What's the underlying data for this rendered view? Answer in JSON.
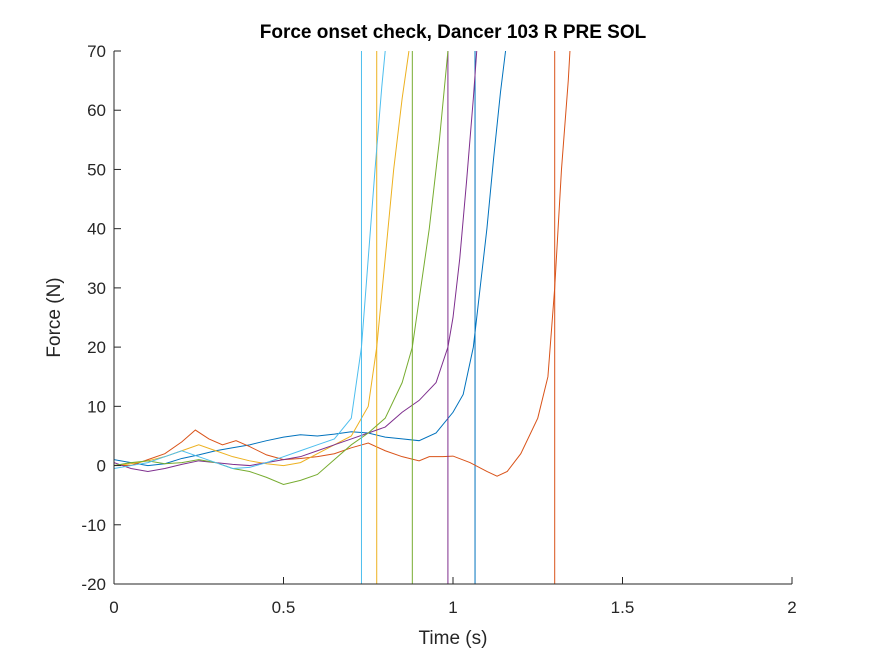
{
  "chart_data": {
    "type": "line",
    "title": "Force onset check, Dancer 103 R PRE SOL",
    "xlabel": "Time (s)",
    "ylabel": "Force (N)",
    "xlim": [
      0,
      2
    ],
    "ylim": [
      -20,
      70
    ],
    "xticks": [
      0,
      0.5,
      1,
      1.5,
      2
    ],
    "xtick_labels": [
      "0",
      "0.5",
      "1",
      "1.5",
      "2"
    ],
    "yticks": [
      -20,
      -10,
      0,
      10,
      20,
      30,
      40,
      50,
      60,
      70
    ],
    "ytick_labels": [
      "-20",
      "-10",
      "0",
      "10",
      "20",
      "30",
      "40",
      "50",
      "60",
      "70"
    ],
    "grid": false,
    "legend": "none",
    "series": [
      {
        "color": "#0072BD",
        "onset": 1.065,
        "points": [
          [
            0,
            1
          ],
          [
            0.05,
            0.5
          ],
          [
            0.1,
            0
          ],
          [
            0.15,
            0.3
          ],
          [
            0.2,
            1.2
          ],
          [
            0.25,
            1.8
          ],
          [
            0.3,
            2.5
          ],
          [
            0.35,
            3.0
          ],
          [
            0.4,
            3.5
          ],
          [
            0.45,
            4.2
          ],
          [
            0.5,
            4.8
          ],
          [
            0.55,
            5.2
          ],
          [
            0.6,
            5.0
          ],
          [
            0.65,
            5.3
          ],
          [
            0.7,
            5.7
          ],
          [
            0.75,
            5.5
          ],
          [
            0.8,
            4.8
          ],
          [
            0.85,
            4.5
          ],
          [
            0.9,
            4.2
          ],
          [
            0.95,
            5.5
          ],
          [
            1.0,
            9.0
          ],
          [
            1.03,
            12.0
          ],
          [
            1.06,
            20.0
          ],
          [
            1.08,
            30.0
          ],
          [
            1.1,
            40.0
          ],
          [
            1.12,
            52.0
          ],
          [
            1.14,
            63.0
          ],
          [
            1.155,
            70.0
          ]
        ]
      },
      {
        "color": "#D95319",
        "onset": 1.3,
        "points": [
          [
            0,
            0
          ],
          [
            0.05,
            0
          ],
          [
            0.1,
            1.0
          ],
          [
            0.15,
            2.0
          ],
          [
            0.2,
            4.0
          ],
          [
            0.24,
            6.0
          ],
          [
            0.28,
            4.5
          ],
          [
            0.32,
            3.5
          ],
          [
            0.36,
            4.2
          ],
          [
            0.4,
            3.2
          ],
          [
            0.45,
            1.8
          ],
          [
            0.5,
            1.0
          ],
          [
            0.55,
            1.2
          ],
          [
            0.6,
            1.5
          ],
          [
            0.65,
            2.0
          ],
          [
            0.7,
            3.0
          ],
          [
            0.75,
            3.8
          ],
          [
            0.8,
            2.5
          ],
          [
            0.85,
            1.5
          ],
          [
            0.9,
            0.8
          ],
          [
            0.93,
            1.5
          ],
          [
            0.97,
            1.5
          ],
          [
            1.0,
            1.6
          ],
          [
            1.05,
            0.5
          ],
          [
            1.1,
            -1.0
          ],
          [
            1.13,
            -1.8
          ],
          [
            1.16,
            -1.0
          ],
          [
            1.2,
            2.0
          ],
          [
            1.25,
            8.0
          ],
          [
            1.28,
            15.0
          ],
          [
            1.3,
            30.0
          ],
          [
            1.32,
            50.0
          ],
          [
            1.34,
            65.0
          ],
          [
            1.345,
            70.0
          ]
        ]
      },
      {
        "color": "#EDB120",
        "onset": 0.775,
        "points": [
          [
            0,
            0
          ],
          [
            0.05,
            0.3
          ],
          [
            0.1,
            0.8
          ],
          [
            0.15,
            1.5
          ],
          [
            0.2,
            2.5
          ],
          [
            0.25,
            3.5
          ],
          [
            0.3,
            2.5
          ],
          [
            0.35,
            1.5
          ],
          [
            0.4,
            0.8
          ],
          [
            0.45,
            0.3
          ],
          [
            0.5,
            0.0
          ],
          [
            0.55,
            0.5
          ],
          [
            0.6,
            2.0
          ],
          [
            0.65,
            3.5
          ],
          [
            0.7,
            5.0
          ],
          [
            0.75,
            10.0
          ],
          [
            0.775,
            20.0
          ],
          [
            0.8,
            35.0
          ],
          [
            0.825,
            50.0
          ],
          [
            0.85,
            62.0
          ],
          [
            0.87,
            70.0
          ]
        ]
      },
      {
        "color": "#7E2F8E",
        "onset": 0.985,
        "points": [
          [
            0,
            0.5
          ],
          [
            0.05,
            -0.5
          ],
          [
            0.1,
            -1.0
          ],
          [
            0.15,
            -0.5
          ],
          [
            0.2,
            0.2
          ],
          [
            0.25,
            0.8
          ],
          [
            0.3,
            0.5
          ],
          [
            0.35,
            0.2
          ],
          [
            0.4,
            0.0
          ],
          [
            0.45,
            0.5
          ],
          [
            0.5,
            1.0
          ],
          [
            0.55,
            1.5
          ],
          [
            0.6,
            2.5
          ],
          [
            0.65,
            3.5
          ],
          [
            0.7,
            4.5
          ],
          [
            0.75,
            5.5
          ],
          [
            0.8,
            6.5
          ],
          [
            0.85,
            9.0
          ],
          [
            0.9,
            11.0
          ],
          [
            0.95,
            14.0
          ],
          [
            0.985,
            20.0
          ],
          [
            1.0,
            25.0
          ],
          [
            1.02,
            35.0
          ],
          [
            1.04,
            48.0
          ],
          [
            1.06,
            62.0
          ],
          [
            1.07,
            70.0
          ]
        ]
      },
      {
        "color": "#77AC30",
        "onset": 0.88,
        "points": [
          [
            0,
            0
          ],
          [
            0.05,
            0.5
          ],
          [
            0.1,
            0.8
          ],
          [
            0.15,
            0.3
          ],
          [
            0.2,
            0.5
          ],
          [
            0.25,
            1.0
          ],
          [
            0.3,
            0.5
          ],
          [
            0.35,
            -0.5
          ],
          [
            0.4,
            -1.0
          ],
          [
            0.45,
            -2.0
          ],
          [
            0.5,
            -3.2
          ],
          [
            0.55,
            -2.5
          ],
          [
            0.6,
            -1.5
          ],
          [
            0.65,
            1.0
          ],
          [
            0.7,
            3.5
          ],
          [
            0.75,
            5.5
          ],
          [
            0.8,
            8.0
          ],
          [
            0.85,
            14.0
          ],
          [
            0.88,
            20.0
          ],
          [
            0.9,
            28.0
          ],
          [
            0.93,
            40.0
          ],
          [
            0.96,
            55.0
          ],
          [
            0.985,
            70.0
          ]
        ]
      },
      {
        "color": "#4DBEEE",
        "onset": 0.73,
        "points": [
          [
            0,
            -0.5
          ],
          [
            0.05,
            0.0
          ],
          [
            0.1,
            0.5
          ],
          [
            0.15,
            1.5
          ],
          [
            0.2,
            2.5
          ],
          [
            0.25,
            1.5
          ],
          [
            0.3,
            0.5
          ],
          [
            0.35,
            -0.5
          ],
          [
            0.4,
            -0.3
          ],
          [
            0.45,
            0.5
          ],
          [
            0.5,
            1.5
          ],
          [
            0.55,
            2.5
          ],
          [
            0.6,
            3.5
          ],
          [
            0.65,
            4.5
          ],
          [
            0.7,
            8.0
          ],
          [
            0.73,
            20.0
          ],
          [
            0.75,
            35.0
          ],
          [
            0.77,
            50.0
          ],
          [
            0.79,
            64.0
          ],
          [
            0.8,
            70.0
          ]
        ]
      }
    ]
  }
}
